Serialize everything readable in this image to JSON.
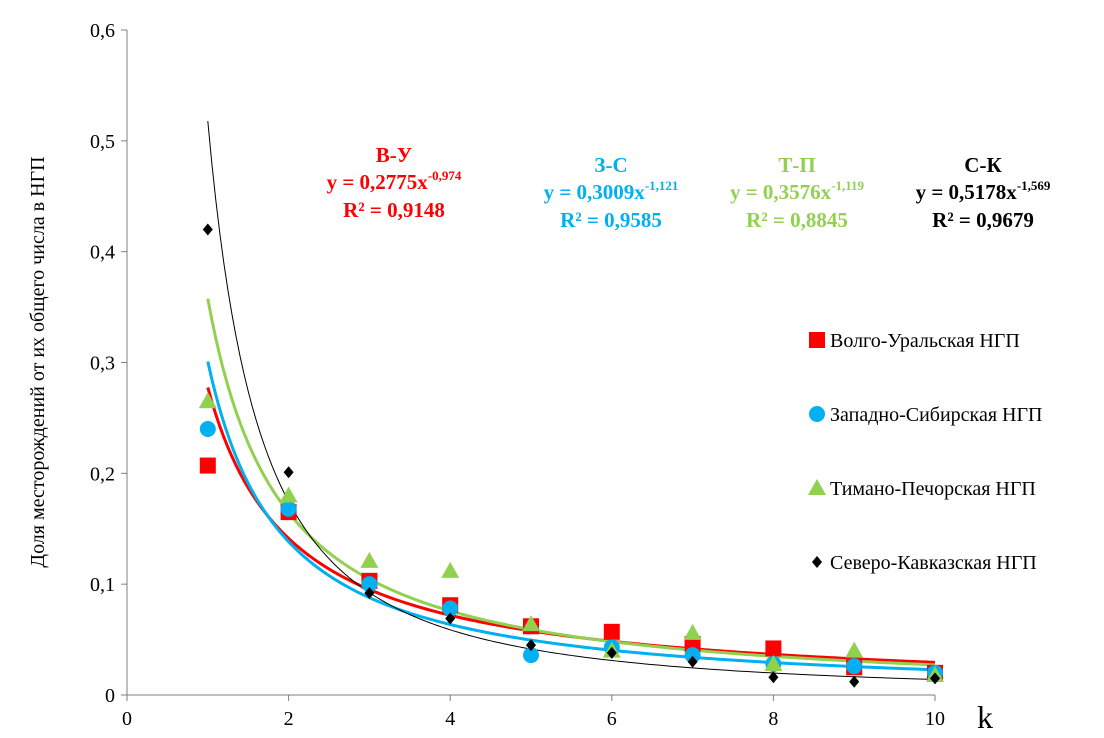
{
  "chart_data": {
    "type": "scatter",
    "title": "",
    "xlabel": "k",
    "ylabel": "Доля месторождений от их общего числа в НГП",
    "xlim": [
      0,
      10
    ],
    "ylim": [
      0,
      0.6
    ],
    "x_ticks": [
      "0",
      "2",
      "4",
      "6",
      "8",
      "10"
    ],
    "y_ticks": [
      "0",
      "0,1",
      "0,2",
      "0,3",
      "0,4",
      "0,5",
      "0,6"
    ],
    "grid": false,
    "legend_position": "right",
    "x": [
      1,
      2,
      3,
      4,
      5,
      6,
      7,
      8,
      9,
      10
    ],
    "series": [
      {
        "name": "Волго-Уральская НГП",
        "marker": "square",
        "color": "#ff0000",
        "values": [
          0.207,
          0.165,
          0.103,
          0.081,
          0.062,
          0.057,
          0.046,
          0.042,
          0.025,
          0.02
        ],
        "trend": {
          "a": 0.2775,
          "b": -0.974,
          "color": "#ff0000",
          "width": 3
        }
      },
      {
        "name": "Западно-Сибирская НГП",
        "marker": "circle",
        "color": "#00b0f0",
        "values": [
          0.24,
          0.168,
          0.1,
          0.078,
          0.036,
          0.043,
          0.036,
          0.028,
          0.026,
          0.02
        ],
        "trend": {
          "a": 0.3009,
          "b": -1.121,
          "color": "#00b0f0",
          "width": 3
        }
      },
      {
        "name": "Тимано-Печорская НГП",
        "marker": "triangle",
        "color": "#92d050",
        "values": [
          0.265,
          0.18,
          0.121,
          0.112,
          0.064,
          0.04,
          0.056,
          0.028,
          0.04,
          0.018
        ],
        "trend": {
          "a": 0.3576,
          "b": -1.119,
          "color": "#92d050",
          "width": 3
        }
      },
      {
        "name": "Северо-Кавказская НГП",
        "marker": "diamond",
        "color": "#000000",
        "values": [
          0.42,
          0.201,
          0.092,
          0.069,
          0.045,
          0.038,
          0.03,
          0.016,
          0.012,
          0.015
        ],
        "trend": {
          "a": 0.5178,
          "b": -1.569,
          "color": "#000000",
          "width": 1
        }
      }
    ],
    "annotations": [
      {
        "title": "В-У",
        "eq_prefix": "y = 0,2775x",
        "eq_exp": "-0,974",
        "r2": "R² = 0,9148",
        "color": "#ff0000"
      },
      {
        "title": "З-С",
        "eq_prefix": "y = 0,3009x",
        "eq_exp": "-1,121",
        "r2": "R² = 0,9585",
        "color": "#00b0f0"
      },
      {
        "title": "Т-П",
        "eq_prefix": "y = 0,3576x",
        "eq_exp": "-1,119",
        "r2": "R² = 0,8845",
        "color": "#92d050"
      },
      {
        "title": "С-К",
        "eq_prefix": "y = 0,5178x",
        "eq_exp": "-1,569",
        "r2": "R² = 0,9679",
        "color": "#000000"
      }
    ]
  }
}
